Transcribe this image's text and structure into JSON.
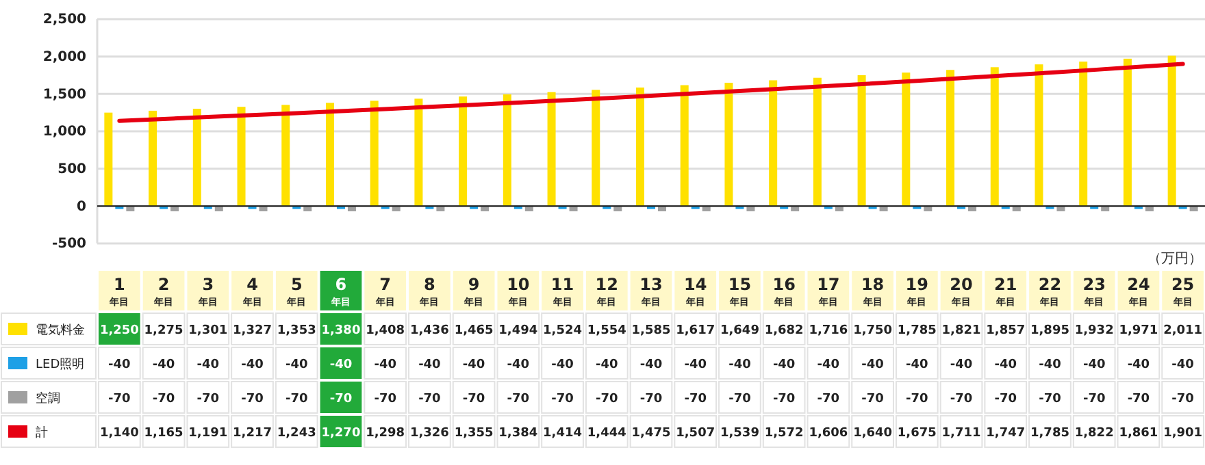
{
  "chart_data": {
    "type": "bar",
    "categories": [
      "1年目",
      "2年目",
      "3年目",
      "4年目",
      "5年目",
      "6年目",
      "7年目",
      "8年目",
      "9年目",
      "10年目",
      "11年目",
      "12年目",
      "13年目",
      "14年目",
      "15年目",
      "16年目",
      "17年目",
      "18年目",
      "19年目",
      "20年目",
      "21年目",
      "22年目",
      "23年目",
      "24年目",
      "25年目"
    ],
    "series": [
      {
        "name": "電気料金",
        "color": "#ffe100",
        "values": [
          1250,
          1275,
          1301,
          1327,
          1353,
          1380,
          1408,
          1436,
          1465,
          1494,
          1524,
          1554,
          1585,
          1617,
          1649,
          1682,
          1716,
          1750,
          1785,
          1821,
          1857,
          1895,
          1932,
          1971,
          2011
        ],
        "value_labels": [
          "1,250",
          "1,275",
          "1,301",
          "1,327",
          "1,353",
          "1,380",
          "1,408",
          "1,436",
          "1,465",
          "1,494",
          "1,524",
          "1,554",
          "1,585",
          "1,617",
          "1,649",
          "1,682",
          "1,716",
          "1,750",
          "1,785",
          "1,821",
          "1,857",
          "1,895",
          "1,932",
          "1,971",
          "2,011"
        ]
      },
      {
        "name": "LED照明",
        "color": "#1ea0e6",
        "values": [
          -40,
          -40,
          -40,
          -40,
          -40,
          -40,
          -40,
          -40,
          -40,
          -40,
          -40,
          -40,
          -40,
          -40,
          -40,
          -40,
          -40,
          -40,
          -40,
          -40,
          -40,
          -40,
          -40,
          -40,
          -40
        ],
        "value_labels": [
          "-40",
          "-40",
          "-40",
          "-40",
          "-40",
          "-40",
          "-40",
          "-40",
          "-40",
          "-40",
          "-40",
          "-40",
          "-40",
          "-40",
          "-40",
          "-40",
          "-40",
          "-40",
          "-40",
          "-40",
          "-40",
          "-40",
          "-40",
          "-40",
          "-40"
        ]
      },
      {
        "name": "空調",
        "color": "#a0a0a0",
        "values": [
          -70,
          -70,
          -70,
          -70,
          -70,
          -70,
          -70,
          -70,
          -70,
          -70,
          -70,
          -70,
          -70,
          -70,
          -70,
          -70,
          -70,
          -70,
          -70,
          -70,
          -70,
          -70,
          -70,
          -70,
          -70
        ],
        "value_labels": [
          "-70",
          "-70",
          "-70",
          "-70",
          "-70",
          "-70",
          "-70",
          "-70",
          "-70",
          "-70",
          "-70",
          "-70",
          "-70",
          "-70",
          "-70",
          "-70",
          "-70",
          "-70",
          "-70",
          "-70",
          "-70",
          "-70",
          "-70",
          "-70",
          "-70"
        ]
      },
      {
        "name": "計",
        "type": "line",
        "color": "#e60012",
        "values": [
          1140,
          1165,
          1191,
          1217,
          1243,
          1270,
          1298,
          1326,
          1355,
          1384,
          1414,
          1444,
          1475,
          1507,
          1539,
          1572,
          1606,
          1640,
          1675,
          1711,
          1747,
          1785,
          1822,
          1861,
          1901
        ],
        "value_labels": [
          "1,140",
          "1,165",
          "1,191",
          "1,217",
          "1,243",
          "1,270",
          "1,298",
          "1,326",
          "1,355",
          "1,384",
          "1,414",
          "1,444",
          "1,475",
          "1,507",
          "1,539",
          "1,572",
          "1,606",
          "1,640",
          "1,675",
          "1,711",
          "1,747",
          "1,785",
          "1,822",
          "1,861",
          "1,901"
        ]
      }
    ],
    "ylim": [
      -500,
      2500
    ],
    "yticks": [
      {
        "value": -500,
        "label": "-500"
      },
      {
        "value": 0,
        "label": "0"
      },
      {
        "value": 500,
        "label": "500"
      },
      {
        "value": 1000,
        "label": "1,000"
      },
      {
        "value": 1500,
        "label": "1,500"
      },
      {
        "value": 2000,
        "label": "2,000"
      },
      {
        "value": 2500,
        "label": "2,500"
      }
    ],
    "grid": "y",
    "legend": "bottom left",
    "marker": "none",
    "line_style": "solid",
    "annotations": [
      "（万円）"
    ]
  }
}
